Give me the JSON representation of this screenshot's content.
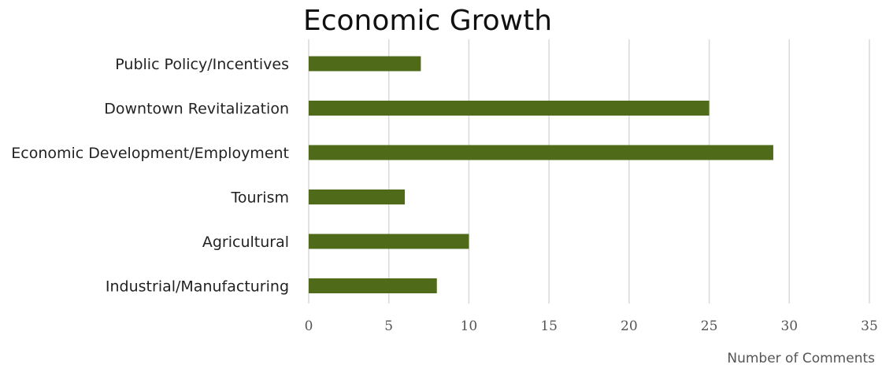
{
  "chart_data": {
    "type": "bar",
    "orientation": "horizontal",
    "title": "Economic Growth",
    "xlabel": "Number of Comments",
    "ylabel": "",
    "categories": [
      "Public Policy/Incentives",
      "Downtown Revitalization",
      "Economic Development/Employment",
      "Tourism",
      "Agricultural",
      "Industrial/Manufacturing"
    ],
    "values": [
      7,
      25,
      29,
      6,
      10,
      8
    ],
    "xlim": [
      0,
      35
    ],
    "xticks": [
      "0",
      "5",
      "10",
      "15",
      "20",
      "25",
      "30",
      "35"
    ],
    "grid": "vertical",
    "legend": "none",
    "bar_color": "#4f6b1a",
    "grid_color": "#d9d9d9"
  }
}
